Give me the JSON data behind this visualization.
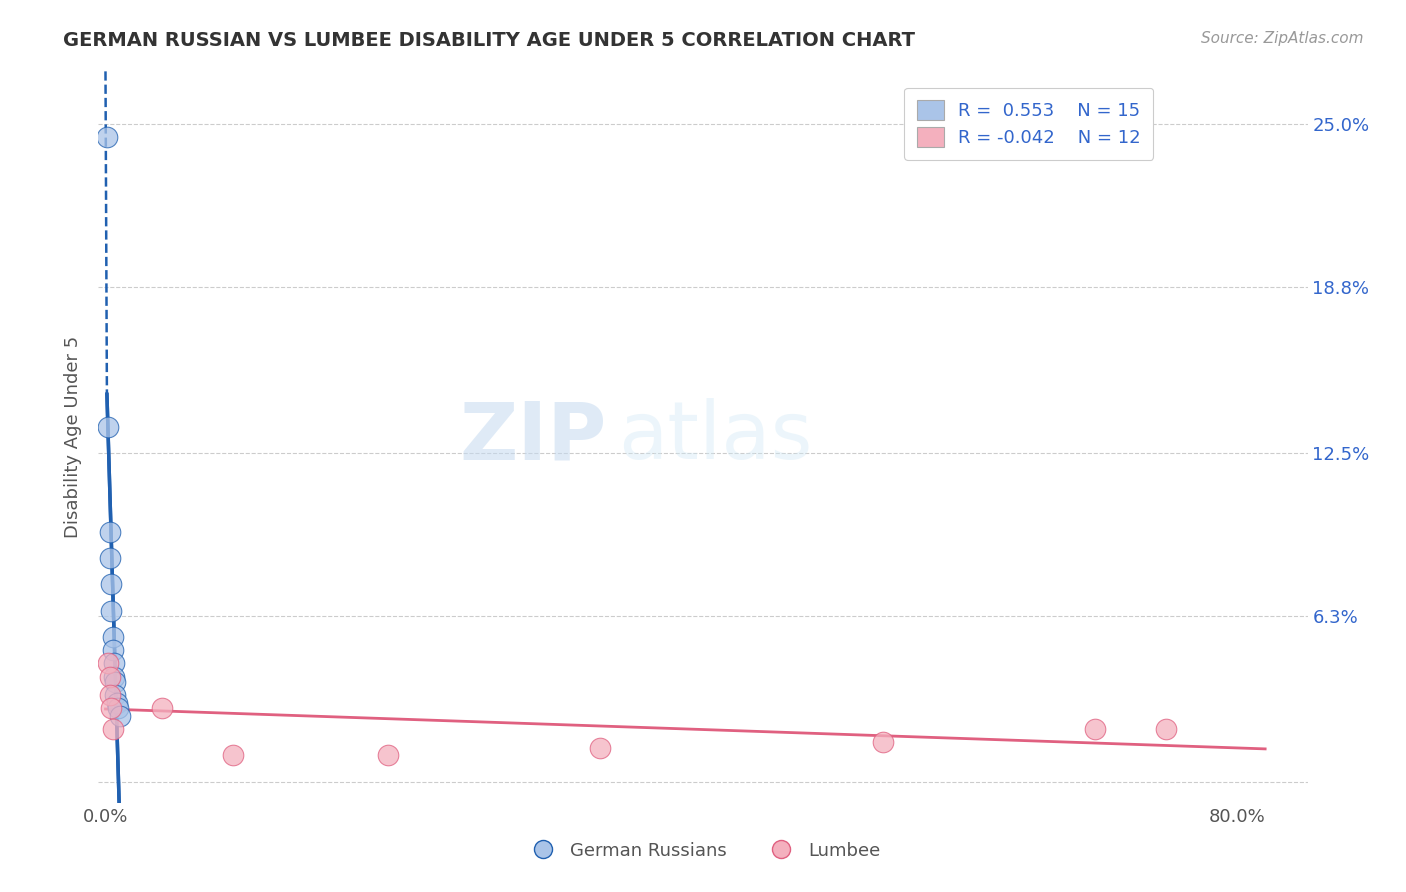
{
  "title": "GERMAN RUSSIAN VS LUMBEE DISABILITY AGE UNDER 5 CORRELATION CHART",
  "source": "Source: ZipAtlas.com",
  "ylabel": "Disability Age Under 5",
  "german_russian_x": [
    0.001,
    0.002,
    0.003,
    0.003,
    0.004,
    0.004,
    0.005,
    0.005,
    0.006,
    0.006,
    0.007,
    0.007,
    0.008,
    0.009,
    0.01
  ],
  "german_russian_y": [
    0.245,
    0.135,
    0.095,
    0.085,
    0.075,
    0.065,
    0.055,
    0.05,
    0.045,
    0.04,
    0.038,
    0.033,
    0.03,
    0.028,
    0.025
  ],
  "lumbee_x": [
    0.002,
    0.003,
    0.003,
    0.004,
    0.005,
    0.04,
    0.09,
    0.2,
    0.35,
    0.55,
    0.7,
    0.75
  ],
  "lumbee_y": [
    0.045,
    0.04,
    0.033,
    0.028,
    0.02,
    0.028,
    0.01,
    0.01,
    0.013,
    0.015,
    0.02,
    0.02
  ],
  "blue_color": "#aac4e8",
  "blue_line_color": "#2060b0",
  "pink_color": "#f4b0be",
  "pink_line_color": "#e06080",
  "R_german": 0.553,
  "N_german": 15,
  "R_lumbee": -0.042,
  "N_lumbee": 12,
  "legend_german": "German Russians",
  "legend_lumbee": "Lumbee",
  "watermark_zip": "ZIP",
  "watermark_atlas": "atlas",
  "bg_color": "#ffffff",
  "grid_color": "#cccccc",
  "xlim": [
    -0.005,
    0.85
  ],
  "ylim": [
    -0.008,
    0.27
  ],
  "ytick_vals": [
    0.0,
    0.063,
    0.125,
    0.188,
    0.25
  ],
  "ytick_labels": [
    "",
    "6.3%",
    "12.5%",
    "18.8%",
    "25.0%"
  ],
  "xtick_vals": [
    0.0,
    0.8
  ],
  "xtick_labels": [
    "0.0%",
    "80.0%"
  ]
}
